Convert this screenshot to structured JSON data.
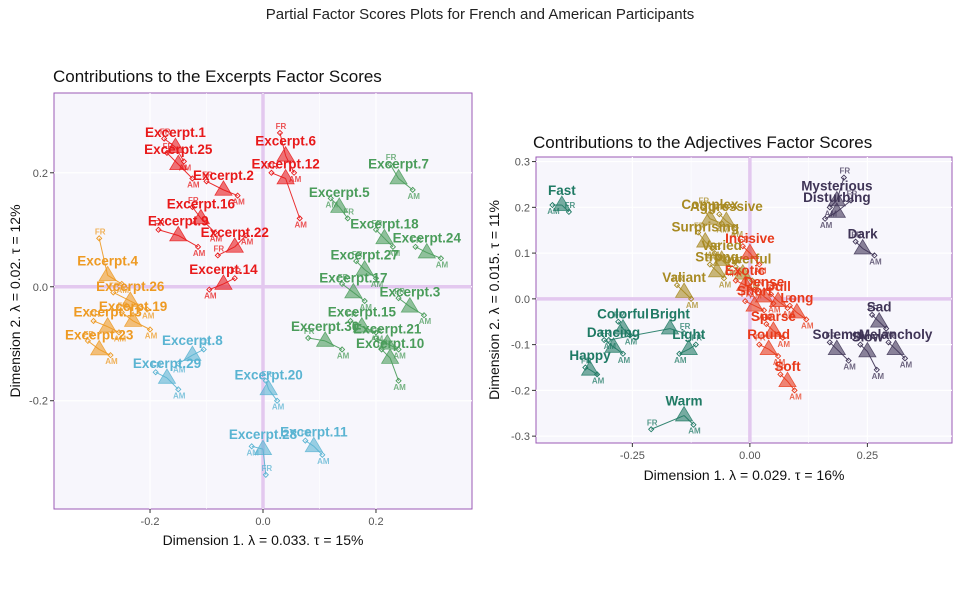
{
  "main_title": "Partial Factor Scores Plots for French and American Participants",
  "chart_data": [
    {
      "type": "scatter",
      "title": "Contributions to the Excerpts Factor Scores",
      "xlabel": "Dimension 1.   λ = 0.033.  τ = 15%",
      "ylabel": "Dimension 2.   λ = 0.02.  τ = 12%",
      "xlim": [
        -0.37,
        0.37
      ],
      "ylim": [
        -0.39,
        0.34
      ],
      "xticks": [
        -0.2,
        0.0,
        0.2
      ],
      "yticks": [
        -0.2,
        0.0,
        0.2
      ],
      "xtick_labels": [
        "-0.2",
        "0.0",
        "0.2"
      ],
      "ytick_labels": [
        "-0.2",
        "0.0",
        "0.2"
      ],
      "grid": true,
      "subgroup_labels": [
        "FR",
        "AM"
      ],
      "colors": {
        "red": "#e8191a",
        "green": "#4a9c5a",
        "orange": "#ee9a22",
        "blue": "#5ab4d2"
      },
      "points": [
        {
          "label": "Excerpt.1",
          "x": -0.155,
          "y": 0.245,
          "fr": [
            -0.175,
            0.26
          ],
          "am": [
            -0.14,
            0.22
          ],
          "color": "red"
        },
        {
          "label": "Excerpt.25",
          "x": -0.15,
          "y": 0.215,
          "fr": [
            -0.17,
            0.235
          ],
          "am": [
            -0.125,
            0.19
          ],
          "color": "red"
        },
        {
          "label": "Excerpt.6",
          "x": 0.04,
          "y": 0.23,
          "fr": [
            0.03,
            0.27
          ],
          "am": [
            0.055,
            0.2
          ],
          "color": "red"
        },
        {
          "label": "Excerpt.2",
          "x": -0.07,
          "y": 0.17,
          "fr": [
            -0.1,
            0.185
          ],
          "am": [
            -0.045,
            0.16
          ],
          "color": "red"
        },
        {
          "label": "Excerpt.12",
          "x": 0.04,
          "y": 0.19,
          "fr": [
            0.015,
            0.2
          ],
          "am": [
            0.065,
            0.12
          ],
          "color": "red"
        },
        {
          "label": "Excerpt.16",
          "x": -0.11,
          "y": 0.12,
          "fr": [
            -0.125,
            0.14
          ],
          "am": [
            -0.085,
            0.095
          ],
          "color": "red"
        },
        {
          "label": "Excerpt.9",
          "x": -0.15,
          "y": 0.09,
          "fr": [
            -0.185,
            0.1
          ],
          "am": [
            -0.115,
            0.07
          ],
          "color": "red"
        },
        {
          "label": "Excerpt.22",
          "x": -0.05,
          "y": 0.07,
          "fr": [
            -0.08,
            0.055
          ],
          "am": [
            -0.03,
            0.09
          ],
          "color": "red"
        },
        {
          "label": "Excerpt.14",
          "x": -0.07,
          "y": 0.005,
          "fr": [
            -0.05,
            0.015
          ],
          "am": [
            -0.095,
            -0.005
          ],
          "color": "red"
        },
        {
          "label": "Excerpt.7",
          "x": 0.24,
          "y": 0.19,
          "fr": [
            0.225,
            0.215
          ],
          "am": [
            0.265,
            0.17
          ],
          "color": "green"
        },
        {
          "label": "Excerpt.5",
          "x": 0.135,
          "y": 0.14,
          "fr": [
            0.15,
            0.12
          ],
          "am": [
            0.12,
            0.155
          ],
          "color": "green"
        },
        {
          "label": "Excerpt.18",
          "x": 0.215,
          "y": 0.085,
          "fr": [
            0.2,
            0.1
          ],
          "am": [
            0.23,
            0.07
          ],
          "color": "green"
        },
        {
          "label": "Excerpt.24",
          "x": 0.29,
          "y": 0.06,
          "fr": [
            0.27,
            0.07
          ],
          "am": [
            0.315,
            0.05
          ],
          "color": "green"
        },
        {
          "label": "Excerpt.27",
          "x": 0.18,
          "y": 0.03,
          "fr": [
            0.165,
            0.045
          ],
          "am": [
            0.2,
            0.015
          ],
          "color": "green"
        },
        {
          "label": "Excerpt.17",
          "x": 0.16,
          "y": -0.01,
          "fr": [
            0.14,
            0.005
          ],
          "am": [
            0.18,
            -0.025
          ],
          "color": "green"
        },
        {
          "label": "Excerpt.3",
          "x": 0.26,
          "y": -0.035,
          "fr": [
            0.24,
            -0.02
          ],
          "am": [
            0.285,
            -0.05
          ],
          "color": "green"
        },
        {
          "label": "Excerpt.15",
          "x": 0.175,
          "y": -0.07,
          "fr": [
            0.155,
            -0.06
          ],
          "am": [
            0.2,
            -0.08
          ],
          "color": "green"
        },
        {
          "label": "Excerpt.30",
          "x": 0.11,
          "y": -0.095,
          "fr": [
            0.08,
            -0.09
          ],
          "am": [
            0.14,
            -0.11
          ],
          "color": "green"
        },
        {
          "label": "Excerpt.21",
          "x": 0.22,
          "y": -0.1,
          "fr": [
            0.2,
            -0.09
          ],
          "am": [
            0.24,
            -0.11
          ],
          "color": "green"
        },
        {
          "label": "Excerpt.10",
          "x": 0.225,
          "y": -0.125,
          "fr": [
            0.21,
            -0.11
          ],
          "am": [
            0.24,
            -0.165
          ],
          "color": "green"
        },
        {
          "label": "Excerpt.4",
          "x": -0.275,
          "y": 0.02,
          "fr": [
            -0.29,
            0.085
          ],
          "am": [
            -0.25,
            0.005
          ],
          "color": "orange"
        },
        {
          "label": "Excerpt.26",
          "x": -0.235,
          "y": -0.025,
          "fr": [
            -0.265,
            -0.01
          ],
          "am": [
            -0.205,
            -0.04
          ],
          "color": "orange"
        },
        {
          "label": "Excerpt.19",
          "x": -0.23,
          "y": -0.06,
          "fr": [
            -0.25,
            -0.045
          ],
          "am": [
            -0.2,
            -0.075
          ],
          "color": "orange"
        },
        {
          "label": "Excerpt.13",
          "x": -0.275,
          "y": -0.07,
          "fr": [
            -0.3,
            -0.06
          ],
          "am": [
            -0.255,
            -0.08
          ],
          "color": "orange"
        },
        {
          "label": "Excerpt.23",
          "x": -0.29,
          "y": -0.11,
          "fr": [
            -0.31,
            -0.095
          ],
          "am": [
            -0.27,
            -0.12
          ],
          "color": "orange"
        },
        {
          "label": "Excerpt.8",
          "x": -0.125,
          "y": -0.12,
          "fr": [
            -0.105,
            -0.11
          ],
          "am": [
            -0.15,
            -0.135
          ],
          "color": "blue"
        },
        {
          "label": "Excerpt.29",
          "x": -0.17,
          "y": -0.16,
          "fr": [
            -0.19,
            -0.15
          ],
          "am": [
            -0.15,
            -0.18
          ],
          "color": "blue"
        },
        {
          "label": "Excerpt.20",
          "x": 0.01,
          "y": -0.18,
          "fr": [
            0.005,
            -0.165
          ],
          "am": [
            0.025,
            -0.2
          ],
          "color": "blue"
        },
        {
          "label": "Excerpt.11",
          "x": 0.09,
          "y": -0.28,
          "fr": [
            0.075,
            -0.27
          ],
          "am": [
            0.105,
            -0.295
          ],
          "color": "blue"
        },
        {
          "label": "Excerpt.28",
          "x": 0.0,
          "y": -0.285,
          "fr": [
            0.005,
            -0.33
          ],
          "am": [
            -0.02,
            -0.28
          ],
          "color": "blue"
        }
      ]
    },
    {
      "type": "scatter",
      "title": "Contributions to the Adjectives Factor Scores",
      "xlabel": "Dimension 1.   λ = 0.029.  τ = 16%",
      "ylabel": "Dimension 2.   λ = 0.015.  τ = 11%",
      "xlim": [
        -0.455,
        0.43
      ],
      "ylim": [
        -0.315,
        0.31
      ],
      "xticks": [
        -0.25,
        0.0,
        0.25
      ],
      "yticks": [
        -0.3,
        -0.2,
        -0.1,
        0.0,
        0.1,
        0.2,
        0.3
      ],
      "xtick_labels": [
        "-0.25",
        "0.00",
        "0.25"
      ],
      "ytick_labels": [
        "-0.3",
        "-0.2",
        "-0.1",
        "0.0",
        "0.1",
        "0.2",
        "0.3"
      ],
      "grid": true,
      "subgroup_labels": [
        "FR",
        "AM"
      ],
      "colors": {
        "darkpurple": "#3f3456",
        "olive": "#a88a22",
        "red": "#e8391a",
        "teal": "#1f7a64"
      },
      "points": [
        {
          "label": "Fast",
          "x": -0.4,
          "y": 0.205,
          "fr": [
            -0.385,
            0.19
          ],
          "am": [
            -0.42,
            0.205
          ],
          "color": "teal"
        },
        {
          "label": "Colorful",
          "x": -0.27,
          "y": -0.065,
          "fr": [
            -0.28,
            -0.05
          ],
          "am": [
            -0.255,
            -0.08
          ],
          "color": "teal"
        },
        {
          "label": "Bright",
          "x": -0.17,
          "y": -0.065,
          "fr": [
            -0.14,
            -0.075
          ],
          "am": [
            -0.3,
            -0.09
          ],
          "color": "teal"
        },
        {
          "label": "Light",
          "x": -0.13,
          "y": -0.11,
          "fr": [
            -0.115,
            -0.1
          ],
          "am": [
            -0.15,
            -0.12
          ],
          "color": "teal"
        },
        {
          "label": "Dancing",
          "x": -0.29,
          "y": -0.105,
          "fr": [
            -0.31,
            -0.09
          ],
          "am": [
            -0.27,
            -0.12
          ],
          "color": "teal"
        },
        {
          "label": "Happy",
          "x": -0.34,
          "y": -0.155,
          "fr": [
            -0.35,
            -0.15
          ],
          "am": [
            -0.325,
            -0.165
          ],
          "color": "teal"
        },
        {
          "label": "Warm",
          "x": -0.14,
          "y": -0.255,
          "fr": [
            -0.21,
            -0.285
          ],
          "am": [
            -0.12,
            -0.275
          ],
          "color": "teal"
        },
        {
          "label": "Complex",
          "x": -0.085,
          "y": 0.175,
          "fr": [
            -0.1,
            0.2
          ],
          "am": [
            -0.06,
            0.165
          ],
          "color": "olive"
        },
        {
          "label": "Aggressive",
          "x": -0.05,
          "y": 0.17,
          "fr": [
            -0.065,
            0.185
          ],
          "am": [
            -0.03,
            0.155
          ],
          "color": "olive"
        },
        {
          "label": "Surprising",
          "x": -0.095,
          "y": 0.125,
          "fr": [
            -0.11,
            0.145
          ],
          "am": [
            -0.08,
            0.11
          ],
          "color": "olive"
        },
        {
          "label": "Varied",
          "x": -0.06,
          "y": 0.085,
          "fr": [
            -0.075,
            0.1
          ],
          "am": [
            -0.045,
            0.07
          ],
          "color": "olive"
        },
        {
          "label": "Strong",
          "x": -0.07,
          "y": 0.06,
          "fr": [
            -0.085,
            0.075
          ],
          "am": [
            -0.055,
            0.045
          ],
          "color": "olive"
        },
        {
          "label": "Powerful",
          "x": -0.015,
          "y": 0.055,
          "fr": [
            -0.03,
            0.07
          ],
          "am": [
            0.005,
            0.04
          ],
          "color": "olive"
        },
        {
          "label": "Valiant",
          "x": -0.14,
          "y": 0.015,
          "fr": [
            -0.155,
            0.03
          ],
          "am": [
            -0.125,
            0.0
          ],
          "color": "olive"
        },
        {
          "label": "Incisive",
          "x": 0.0,
          "y": 0.1,
          "fr": [
            -0.015,
            0.115
          ],
          "am": [
            0.02,
            0.075
          ],
          "color": "red"
        },
        {
          "label": "Exotic",
          "x": -0.01,
          "y": 0.03,
          "fr": [
            -0.03,
            0.04
          ],
          "am": [
            0.01,
            0.02
          ],
          "color": "red"
        },
        {
          "label": "Dense",
          "x": 0.03,
          "y": 0.005,
          "fr": [
            0.015,
            0.02
          ],
          "am": [
            0.05,
            -0.01
          ],
          "color": "red"
        },
        {
          "label": "Dull",
          "x": 0.06,
          "y": -0.005,
          "fr": [
            0.045,
            0.01
          ],
          "am": [
            0.08,
            -0.02
          ],
          "color": "red"
        },
        {
          "label": "Short",
          "x": 0.01,
          "y": -0.015,
          "fr": [
            -0.01,
            -0.005
          ],
          "am": [
            0.03,
            -0.025
          ],
          "color": "red"
        },
        {
          "label": "Long",
          "x": 0.1,
          "y": -0.03,
          "fr": [
            0.085,
            -0.015
          ],
          "am": [
            0.12,
            -0.045
          ],
          "color": "red"
        },
        {
          "label": "Sparse",
          "x": 0.05,
          "y": -0.07,
          "fr": [
            0.035,
            -0.055
          ],
          "am": [
            0.07,
            -0.085
          ],
          "color": "red"
        },
        {
          "label": "Round",
          "x": 0.04,
          "y": -0.11,
          "fr": [
            0.02,
            -0.1
          ],
          "am": [
            0.06,
            -0.125
          ],
          "color": "red"
        },
        {
          "label": "Soft",
          "x": 0.08,
          "y": -0.18,
          "fr": [
            0.065,
            -0.165
          ],
          "am": [
            0.095,
            -0.2
          ],
          "color": "red"
        },
        {
          "label": "Mysterious",
          "x": 0.185,
          "y": 0.215,
          "fr": [
            0.2,
            0.265
          ],
          "am": [
            0.17,
            0.2
          ],
          "color": "darkpurple"
        },
        {
          "label": "Disturbing",
          "x": 0.185,
          "y": 0.19,
          "fr": [
            0.215,
            0.215
          ],
          "am": [
            0.16,
            0.175
          ],
          "color": "darkpurple"
        },
        {
          "label": "Dark",
          "x": 0.24,
          "y": 0.11,
          "fr": [
            0.225,
            0.125
          ],
          "am": [
            0.265,
            0.095
          ],
          "color": "darkpurple"
        },
        {
          "label": "Sad",
          "x": 0.275,
          "y": -0.05,
          "fr": [
            0.26,
            -0.035
          ],
          "am": [
            0.29,
            -0.065
          ],
          "color": "darkpurple"
        },
        {
          "label": "Solemn",
          "x": 0.185,
          "y": -0.11,
          "fr": [
            0.17,
            -0.095
          ],
          "am": [
            0.21,
            -0.135
          ],
          "color": "darkpurple"
        },
        {
          "label": "Melancholy",
          "x": 0.31,
          "y": -0.11,
          "fr": [
            0.295,
            -0.095
          ],
          "am": [
            0.33,
            -0.13
          ],
          "color": "darkpurple"
        },
        {
          "label": "Slow",
          "x": 0.25,
          "y": -0.115,
          "fr": [
            0.235,
            -0.1
          ],
          "am": [
            0.27,
            -0.155
          ],
          "color": "darkpurple"
        }
      ]
    }
  ]
}
